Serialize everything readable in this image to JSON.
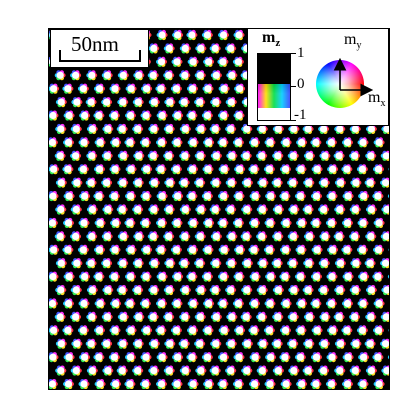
{
  "scalebar": {
    "label": "50nm"
  },
  "legend": {
    "mz_label": "m",
    "mz_sub": "z",
    "mz_ticks": [
      "1",
      "0",
      "-1"
    ],
    "my_label": "m",
    "my_sub": "y",
    "mx_label": "m",
    "mx_sub": "x"
  },
  "colors": {
    "background": "#000000",
    "skyrmion_core": "#ffffff",
    "wheel_colors": [
      "#ff0000",
      "#ffff00",
      "#00ff00",
      "#00ffff",
      "#0000ff",
      "#ff00ff"
    ]
  }
}
